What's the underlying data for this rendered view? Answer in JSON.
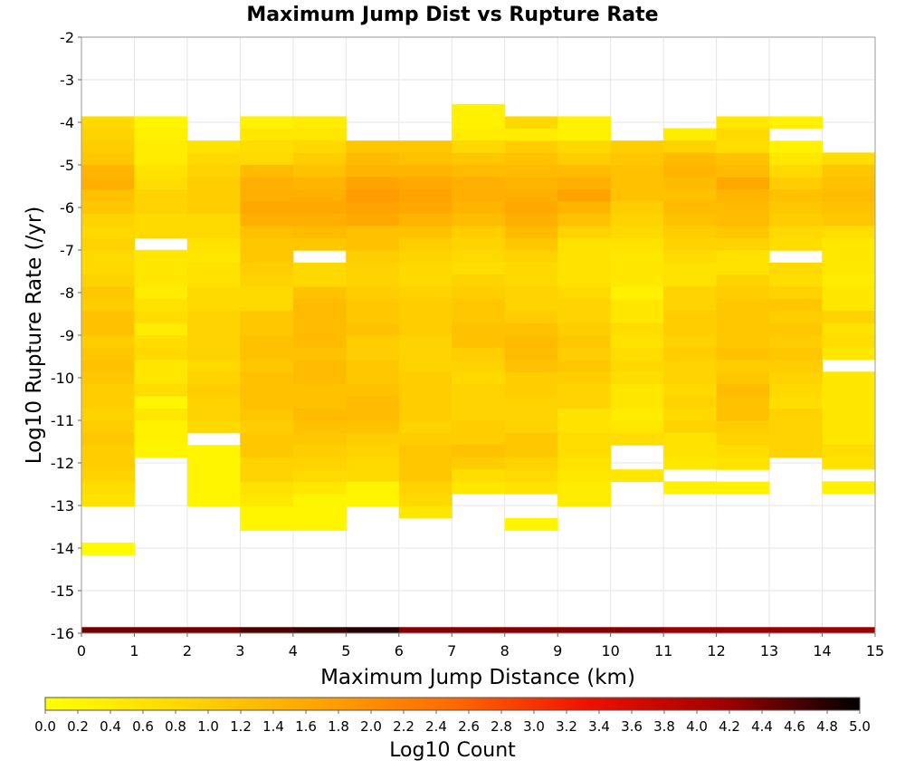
{
  "chart_data": {
    "type": "heatmap",
    "title": "Maximum Jump Dist vs Rupture Rate",
    "xlabel": "Maximum Jump Distance (km)",
    "ylabel": "Log10 Rupture Rate (/yr)",
    "xlim": [
      0,
      15
    ],
    "ylim": [
      -16,
      -2
    ],
    "x_ticks": [
      "0",
      "1",
      "2",
      "3",
      "4",
      "5",
      "6",
      "7",
      "8",
      "9",
      "10",
      "11",
      "12",
      "13",
      "14",
      "15"
    ],
    "y_ticks": [
      "-2",
      "-3",
      "-4",
      "-5",
      "-6",
      "-7",
      "-8",
      "-9",
      "-10",
      "-11",
      "-12",
      "-13",
      "-14",
      "-15",
      "-16"
    ],
    "x_bin_width": 1,
    "y_bin_height": 0.286,
    "grid": true,
    "colorbar": {
      "label": "Log10 Count",
      "range": [
        0,
        5
      ],
      "ticks": [
        "0.0",
        "0.2",
        "0.4",
        "0.6",
        "0.8",
        "1.0",
        "1.2",
        "1.4",
        "1.6",
        "1.8",
        "2.0",
        "2.2",
        "2.4",
        "2.6",
        "2.8",
        "3.0",
        "3.2",
        "3.4",
        "3.6",
        "3.8",
        "4.0",
        "4.2",
        "4.4",
        "4.6",
        "4.8",
        "5.0"
      ],
      "stops": [
        "#ffff00",
        "#ffd700",
        "#ffa500",
        "#ff6a00",
        "#ee1100",
        "#a00000",
        "#000000"
      ]
    },
    "columns": [
      {
        "x": 0.5,
        "y_top": -3.86,
        "values": [
          0.8,
          0.9,
          1.0,
          1.1,
          1.4,
          1.5,
          1.2,
          1.1,
          0.9,
          0.8,
          0.9,
          0.8,
          0.8,
          0.9,
          1.1,
          1.0,
          1.2,
          1.2,
          1.0,
          1.1,
          1.2,
          1.1,
          1.0,
          1.0,
          0.9,
          1.0,
          1.1,
          1.0,
          1.0,
          0.9,
          0.7,
          0.6,
          null,
          null,
          null,
          0.1
        ]
      },
      {
        "x": 1.5,
        "y_top": -3.86,
        "values": [
          0.2,
          0.3,
          0.4,
          0.4,
          0.6,
          0.7,
          0.9,
          0.9,
          0.8,
          0.8,
          null,
          0.5,
          0.5,
          0.5,
          0.4,
          0.6,
          0.7,
          0.4,
          0.7,
          0.8,
          0.5,
          0.5,
          0.7,
          0.2,
          0.5,
          0.3,
          0.3,
          0.2
        ]
      },
      {
        "x": 2.5,
        "y_top": -4.43,
        "values": [
          0.6,
          0.8,
          0.9,
          1.0,
          1.0,
          1.0,
          0.8,
          0.8,
          0.6,
          0.5,
          0.6,
          0.6,
          0.8,
          0.8,
          0.9,
          0.9,
          0.9,
          0.9,
          0.8,
          0.9,
          1.0,
          0.9,
          0.9,
          0.8,
          null,
          0.2,
          0.2,
          0.2,
          0.2,
          0.2
        ]
      },
      {
        "x": 3.5,
        "y_top": -3.86,
        "values": [
          0.3,
          0.5,
          0.7,
          0.8,
          1.3,
          1.5,
          1.5,
          1.6,
          1.5,
          1.2,
          1.1,
          1.1,
          1.0,
          0.9,
          0.8,
          0.8,
          1.1,
          1.1,
          1.2,
          1.2,
          1.1,
          1.2,
          1.2,
          1.2,
          1.1,
          1.0,
          1.1,
          1.1,
          0.9,
          0.9,
          0.6,
          0.5,
          0.2,
          0.2
        ]
      },
      {
        "x": 4.5,
        "y_top": -3.86,
        "values": [
          0.4,
          0.5,
          0.8,
          1.0,
          1.2,
          1.4,
          1.5,
          1.6,
          1.5,
          1.3,
          1.1,
          null,
          0.8,
          0.8,
          1.2,
          1.3,
          1.3,
          1.3,
          1.3,
          1.2,
          1.3,
          1.3,
          1.2,
          1.2,
          1.3,
          1.2,
          1.1,
          1.0,
          0.9,
          0.8,
          0.5,
          0.2,
          0.2,
          0.2
        ]
      },
      {
        "x": 5.5,
        "y_top": -4.43,
        "values": [
          1.1,
          1.3,
          1.4,
          1.7,
          1.8,
          1.7,
          1.6,
          1.2,
          1.2,
          1.0,
          0.9,
          0.9,
          1.0,
          1.1,
          1.1,
          1.2,
          1.0,
          1.0,
          1.1,
          1.1,
          1.2,
          1.3,
          1.3,
          1.2,
          1.0,
          0.9,
          0.8,
          0.8,
          0.2,
          0.2
        ]
      },
      {
        "x": 6.5,
        "y_top": -4.43,
        "values": [
          1.1,
          1.2,
          1.4,
          1.6,
          1.7,
          1.6,
          1.4,
          1.2,
          1.0,
          0.9,
          0.8,
          0.8,
          0.9,
          1.0,
          1.0,
          1.0,
          0.9,
          0.9,
          0.9,
          1.0,
          1.0,
          1.0,
          1.0,
          0.9,
          1.0,
          1.1,
          1.1,
          1.1,
          0.9,
          0.8,
          0.5
        ]
      },
      {
        "x": 7.5,
        "y_top": -3.57,
        "values": [
          0.3,
          0.3,
          0.4,
          0.8,
          1.1,
          1.3,
          1.5,
          1.5,
          1.4,
          1.3,
          1.0,
          0.9,
          0.8,
          0.7,
          0.9,
          1.0,
          1.1,
          1.1,
          1.2,
          1.2,
          1.0,
          0.9,
          0.8,
          0.9,
          0.9,
          0.9,
          1.0,
          1.0,
          1.2,
          1.0,
          0.7,
          0.5
        ]
      },
      {
        "x": 8.5,
        "y_top": -3.86,
        "values": [
          0.8,
          0.4,
          1.0,
          1.2,
          1.3,
          1.4,
          1.5,
          1.6,
          1.5,
          1.3,
          1.1,
          0.9,
          0.8,
          0.8,
          0.9,
          0.9,
          1.0,
          1.2,
          1.3,
          1.3,
          1.2,
          1.0,
          1.0,
          0.9,
          0.9,
          0.9,
          1.1,
          1.1,
          0.9,
          0.8,
          0.6,
          null,
          null,
          0.2
        ]
      },
      {
        "x": 9.5,
        "y_top": -3.86,
        "values": [
          0.3,
          0.3,
          0.8,
          1.0,
          1.3,
          1.5,
          1.7,
          1.4,
          1.2,
          0.9,
          0.6,
          0.6,
          0.6,
          0.6,
          0.8,
          0.9,
          0.9,
          1.0,
          1.1,
          1.0,
          1.1,
          1.0,
          0.9,
          0.9,
          0.6,
          0.6,
          0.7,
          0.7,
          0.6,
          0.5,
          0.4,
          0.4
        ]
      },
      {
        "x": 10.5,
        "y_top": -4.43,
        "values": [
          1.0,
          1.1,
          1.2,
          1.2,
          1.2,
          1.0,
          0.9,
          0.8,
          0.6,
          0.5,
          0.5,
          0.5,
          0.3,
          0.5,
          0.5,
          0.7,
          0.6,
          0.7,
          0.8,
          0.7,
          0.5,
          0.5,
          0.4,
          0.5,
          0.7,
          null,
          null,
          0.5
        ]
      },
      {
        "x": 11.5,
        "y_top": -4.14,
        "values": [
          0.4,
          0.9,
          1.3,
          1.4,
          1.3,
          1.2,
          1.3,
          1.2,
          1.0,
          0.9,
          0.8,
          0.6,
          0.6,
          0.9,
          0.9,
          1.0,
          1.0,
          0.9,
          1.0,
          0.9,
          0.9,
          0.8,
          0.9,
          0.8,
          0.9,
          0.6,
          0.6,
          0.5,
          null,
          0.3
        ]
      },
      {
        "x": 12.5,
        "y_top": -3.86,
        "values": [
          0.5,
          0.8,
          0.7,
          1.2,
          1.3,
          1.6,
          1.4,
          1.3,
          1.3,
          1.1,
          0.9,
          0.6,
          0.6,
          0.9,
          1.0,
          1.1,
          1.1,
          1.1,
          1.1,
          1.2,
          1.0,
          1.1,
          1.3,
          1.2,
          1.2,
          1.0,
          0.9,
          0.7,
          0.6,
          null,
          0.3
        ]
      },
      {
        "x": 13.5,
        "y_top": -3.86,
        "values": [
          0.3,
          null,
          0.3,
          0.5,
          0.8,
          1.0,
          1.2,
          1.1,
          1.0,
          0.8,
          0.7,
          null,
          0.8,
          0.7,
          0.9,
          1.1,
          1.0,
          1.1,
          1.0,
          1.1,
          1.0,
          0.9,
          0.8,
          0.7,
          0.9,
          0.9,
          0.9,
          0.9
        ]
      },
      {
        "x": 14.5,
        "y_top": -4.71,
        "values": [
          0.7,
          1.1,
          1.2,
          1.3,
          1.2,
          1.1,
          0.7,
          0.5,
          0.5,
          0.5,
          0.4,
          0.5,
          0.5,
          0.9,
          0.6,
          0.7,
          0.5,
          null,
          0.5,
          0.5,
          0.5,
          0.5,
          0.5,
          0.5,
          0.7,
          0.6,
          null,
          0.3
        ]
      }
    ],
    "bottom_row": {
      "y": -16,
      "values": [
        4.4,
        4.4,
        4.4,
        4.6,
        4.7,
        4.8,
        4.3,
        4.3,
        4.3,
        4.3,
        4.3,
        4.2,
        4.2,
        4.2,
        4.2
      ]
    }
  }
}
